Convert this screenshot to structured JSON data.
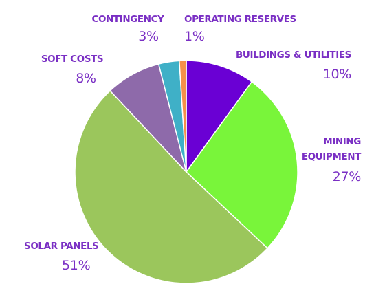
{
  "chart_data": {
    "type": "pie",
    "title": "",
    "start_angle_deg": 0,
    "direction": "clockwise",
    "label_color": "#7a2fc4",
    "slices": [
      {
        "label": "BUILDINGS & UTILITIES",
        "value": 10,
        "value_label": "10%",
        "color": "#6a00d4"
      },
      {
        "label": "MINING EQUIPMENT",
        "label_lines": [
          "MINING",
          "EQUIPMENT"
        ],
        "value": 27,
        "value_label": "27%",
        "color": "#79f53a"
      },
      {
        "label": "SOLAR PANELS",
        "value": 51,
        "value_label": "51%",
        "color": "#9bc65c"
      },
      {
        "label": "SOFT COSTS",
        "value": 8,
        "value_label": "8%",
        "color": "#8e6aaa"
      },
      {
        "label": "CONTINGENCY",
        "value": 3,
        "value_label": "3%",
        "color": "#3fb0c7"
      },
      {
        "label": "OPERATING RESERVES",
        "value": 1,
        "value_label": "1%",
        "color": "#f5904a"
      }
    ]
  }
}
